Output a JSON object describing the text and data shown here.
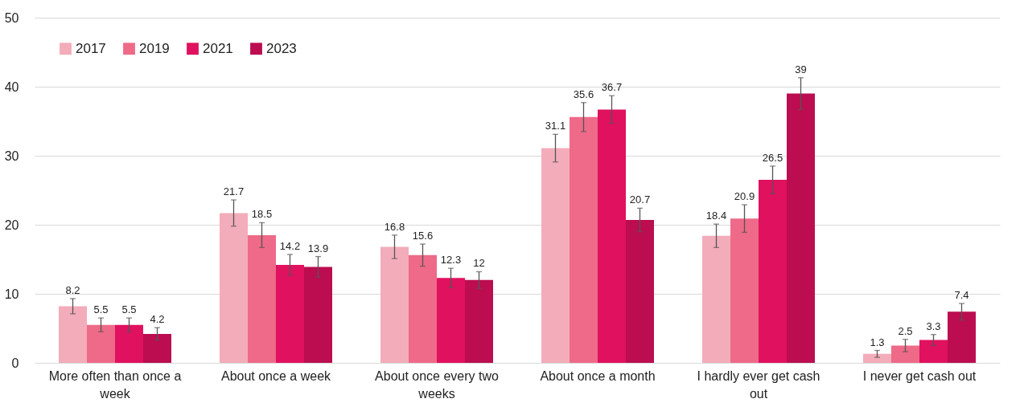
{
  "chart_data": {
    "type": "bar",
    "categories": [
      "More often than once a week",
      "About once a week",
      "About once every two weeks",
      "About once a month",
      "I hardly ever get cash out",
      "I never get cash out"
    ],
    "series": [
      {
        "name": "2017",
        "color": "#f3acba",
        "values": [
          8.2,
          21.7,
          16.8,
          31.1,
          18.4,
          1.3
        ],
        "errors": [
          1.1,
          1.9,
          1.7,
          2.0,
          1.7,
          0.5
        ]
      },
      {
        "name": "2019",
        "color": "#ee6a88",
        "values": [
          5.5,
          18.5,
          15.6,
          35.6,
          20.9,
          2.5
        ],
        "errors": [
          1.0,
          1.8,
          1.6,
          2.1,
          2.0,
          0.9
        ]
      },
      {
        "name": "2021",
        "color": "#e0115f",
        "values": [
          5.5,
          14.2,
          12.3,
          36.7,
          26.5,
          3.3
        ],
        "errors": [
          1.0,
          1.5,
          1.4,
          2.0,
          2.0,
          0.8
        ]
      },
      {
        "name": "2023",
        "color": "#bb0d4f",
        "values": [
          4.2,
          13.9,
          12,
          20.7,
          39,
          7.4
        ],
        "errors": [
          0.9,
          1.5,
          1.2,
          1.7,
          2.3,
          1.2
        ]
      }
    ],
    "ylim": [
      0,
      50
    ],
    "yticks": [
      0,
      10,
      20,
      30,
      40,
      50
    ],
    "grid": "y",
    "legend": "top left",
    "data_labels": true
  }
}
